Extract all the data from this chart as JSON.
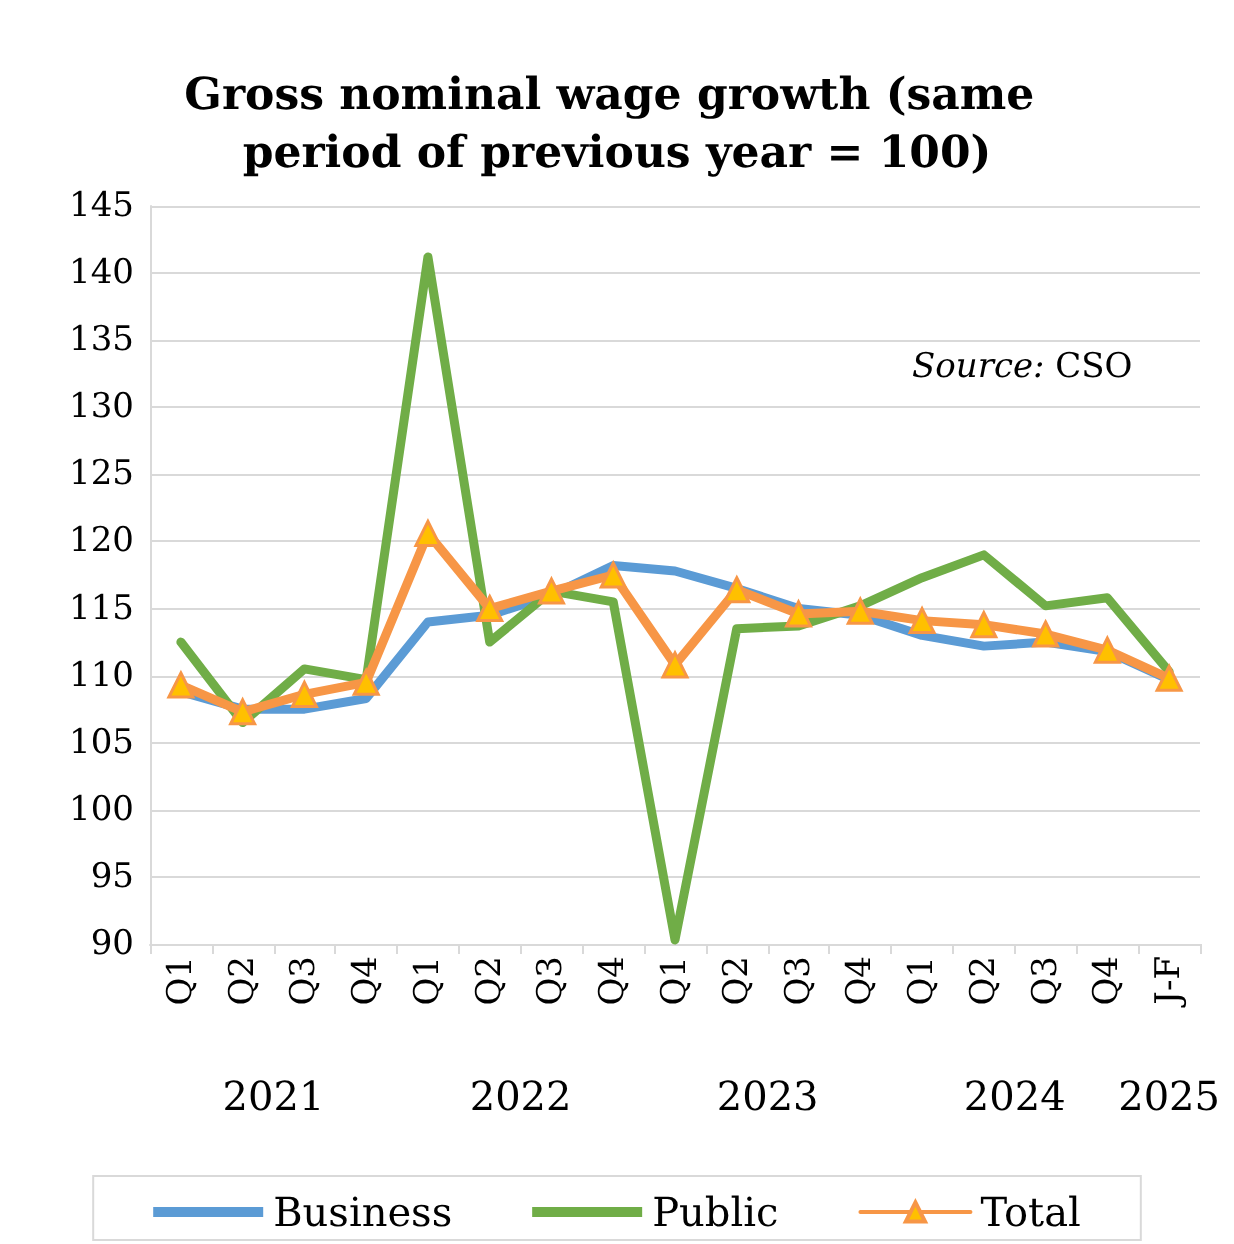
{
  "chart_data": {
    "type": "line",
    "title": "Gross nominal wage growth (same period of previous year = 100)",
    "categories": [
      "Q1",
      "Q2",
      "Q3",
      "Q4",
      "Q1",
      "Q2",
      "Q3",
      "Q4",
      "Q1",
      "Q2",
      "Q3",
      "Q4",
      "Q1",
      "Q2",
      "Q3",
      "Q4",
      "J-F"
    ],
    "series": [
      {
        "name": "Business",
        "color": "#5b9bd5",
        "marker": "none",
        "values": [
          108.8,
          107.5,
          107.5,
          108.3,
          114,
          114.5,
          116,
          118.2,
          117.8,
          116.5,
          115,
          114.5,
          113,
          112.2,
          112.5,
          111.8,
          109.7
        ]
      },
      {
        "name": "Public",
        "color": "#70ad47",
        "marker": "none",
        "values": [
          112.5,
          106.5,
          110.5,
          109.7,
          141.2,
          112.5,
          116.3,
          115.5,
          90.3,
          113.5,
          113.7,
          115.2,
          117.3,
          119,
          115.2,
          115.8,
          110.3
        ]
      },
      {
        "name": "Total",
        "color": "#f79646",
        "marker": "triangle",
        "values": [
          109.3,
          107.3,
          108.6,
          109.5,
          120.6,
          115,
          116.3,
          117.5,
          110.8,
          116.4,
          114.6,
          114.8,
          114.1,
          113.8,
          113.1,
          111.9,
          109.8
        ]
      }
    ],
    "ylim": [
      90,
      145
    ],
    "yticks": [
      90,
      95,
      100,
      105,
      110,
      115,
      120,
      125,
      130,
      135,
      140,
      145
    ],
    "grid": "y",
    "legend": "bottom",
    "line_style": "solid",
    "annotations": [
      "Source: CSO",
      "2021",
      "2022",
      "2023",
      "2024",
      "2025"
    ]
  }
}
